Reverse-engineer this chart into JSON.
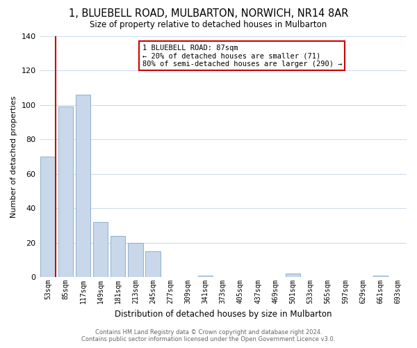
{
  "title": "1, BLUEBELL ROAD, MULBARTON, NORWICH, NR14 8AR",
  "subtitle": "Size of property relative to detached houses in Mulbarton",
  "xlabel": "Distribution of detached houses by size in Mulbarton",
  "ylabel": "Number of detached properties",
  "bar_labels": [
    "53sqm",
    "85sqm",
    "117sqm",
    "149sqm",
    "181sqm",
    "213sqm",
    "245sqm",
    "277sqm",
    "309sqm",
    "341sqm",
    "373sqm",
    "405sqm",
    "437sqm",
    "469sqm",
    "501sqm",
    "533sqm",
    "565sqm",
    "597sqm",
    "629sqm",
    "661sqm",
    "693sqm"
  ],
  "bar_values": [
    70,
    99,
    106,
    32,
    24,
    20,
    15,
    0,
    0,
    1,
    0,
    0,
    0,
    0,
    2,
    0,
    0,
    0,
    0,
    1,
    0
  ],
  "bar_color": "#c8d8ea",
  "bar_edge_color": "#8eb0cc",
  "highlight_line_color": "#cc0000",
  "annotation_text_line1": "1 BLUEBELL ROAD: 87sqm",
  "annotation_text_line2": "← 20% of detached houses are smaller (71)",
  "annotation_text_line3": "80% of semi-detached houses are larger (290) →",
  "ylim": [
    0,
    140
  ],
  "yticks": [
    0,
    20,
    40,
    60,
    80,
    100,
    120,
    140
  ],
  "footer_line1": "Contains HM Land Registry data © Crown copyright and database right 2024.",
  "footer_line2": "Contains public sector information licensed under the Open Government Licence v3.0.",
  "background_color": "#ffffff",
  "grid_color": "#ccdcec"
}
